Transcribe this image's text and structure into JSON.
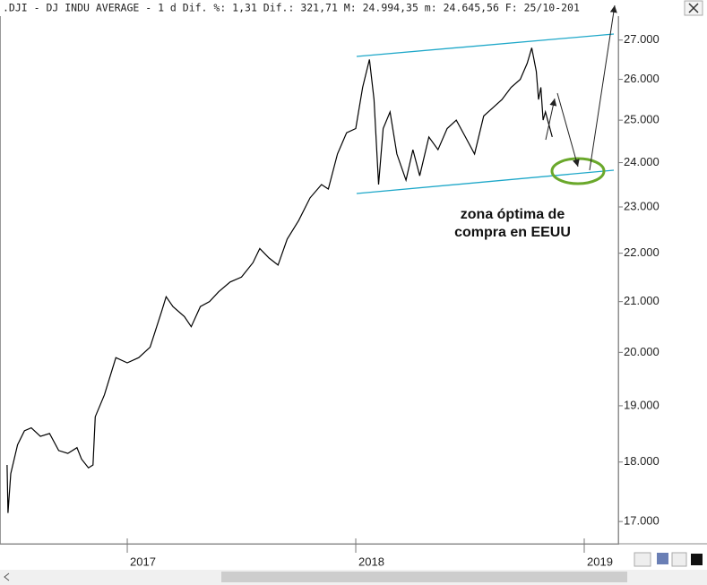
{
  "chart_data": {
    "type": "line",
    "title": ".DJI - DJ INDU AVERAGE -  1 d Dif. %: 1,31 Dif.: 321,71 M: 24.994,35 m: 24.645,56 F: 25/10-201",
    "annotation": "zona óptima de compra en EEUU",
    "log_scale": true,
    "grid": false,
    "color": "#000000",
    "x": [
      2016.474,
      2016.478,
      2016.49,
      2016.52,
      2016.55,
      2016.58,
      2016.62,
      2016.66,
      2016.7,
      2016.74,
      2016.78,
      2016.8,
      2016.83,
      2016.85,
      2016.86,
      2016.9,
      2016.95,
      2017.0,
      2017.05,
      2017.1,
      2017.15,
      2017.17,
      2017.2,
      2017.25,
      2017.28,
      2017.32,
      2017.36,
      2017.4,
      2017.45,
      2017.5,
      2017.55,
      2017.58,
      2017.62,
      2017.66,
      2017.7,
      2017.75,
      2017.8,
      2017.85,
      2017.88,
      2017.92,
      2017.96,
      2018.0,
      2018.03,
      2018.06,
      2018.08,
      2018.1,
      2018.12,
      2018.15,
      2018.18,
      2018.22,
      2018.25,
      2018.28,
      2018.32,
      2018.36,
      2018.4,
      2018.44,
      2018.48,
      2018.52,
      2018.56,
      2018.6,
      2018.64,
      2018.68,
      2018.72,
      2018.75,
      2018.77,
      2018.79,
      2018.8,
      2018.81,
      2018.82,
      2018.83,
      2018.86
    ],
    "values": [
      17950,
      17140,
      17800,
      18300,
      18550,
      18600,
      18450,
      18500,
      18200,
      18150,
      18250,
      18050,
      17900,
      17950,
      18800,
      19200,
      19900,
      19800,
      19900,
      20100,
      20800,
      21100,
      20900,
      20700,
      20500,
      20900,
      21000,
      21200,
      21400,
      21500,
      21800,
      22100,
      21900,
      21750,
      22300,
      22700,
      23200,
      23500,
      23400,
      24200,
      24700,
      24800,
      25800,
      26500,
      25500,
      23500,
      24800,
      25200,
      24200,
      23600,
      24300,
      23700,
      24600,
      24300,
      24800,
      25000,
      24600,
      24200,
      25100,
      25300,
      25500,
      25800,
      26000,
      26400,
      26800,
      26200,
      25500,
      25800,
      25000,
      25200,
      24600
    ],
    "xlim": [
      2016.443,
      2019.149
    ],
    "xticks": [
      2017,
      2018,
      2019
    ],
    "ylim": [
      16640,
      28060
    ],
    "yticks": [
      {
        "value": 17000,
        "label": "17.000"
      },
      {
        "value": 18000,
        "label": "18.000"
      },
      {
        "value": 19000,
        "label": "19.000"
      },
      {
        "value": 20000,
        "label": "20.000"
      },
      {
        "value": 21000,
        "label": "21.000"
      },
      {
        "value": 22000,
        "label": "22.000"
      },
      {
        "value": 23000,
        "label": "23.000"
      },
      {
        "value": 24000,
        "label": "24.000"
      },
      {
        "value": 25000,
        "label": "25.000"
      },
      {
        "value": 26000,
        "label": "26.000"
      },
      {
        "value": 27000,
        "label": "27.000"
      }
    ]
  }
}
